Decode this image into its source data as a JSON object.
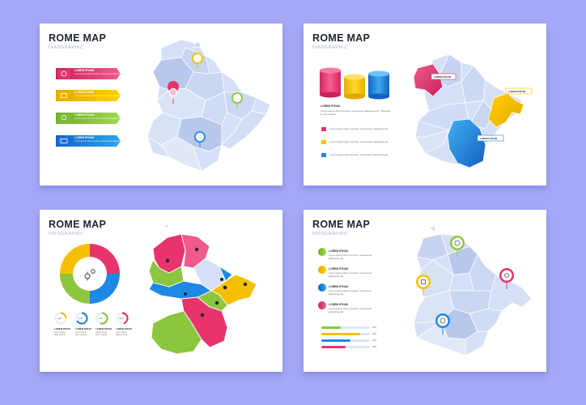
{
  "cards": [
    {
      "title": "ROME MAP",
      "subtitle": "INFOGRAPHIC",
      "items": [
        {
          "heading": "LOREM IPSUM",
          "text": "Lorem ipsum dolor sit amet, consectetur adipiscing elit",
          "color": "#e8336d",
          "icon": "building-icon"
        },
        {
          "heading": "LOREM IPSUM",
          "text": "Lorem ipsum dolor sit amet, consectetur adipiscing elit",
          "color": "#f5c000",
          "icon": "bridge-icon"
        },
        {
          "heading": "LOREM IPSUM",
          "text": "Lorem ipsum dolor sit amet, consectetur adipiscing elit",
          "color": "#8cc63e",
          "icon": "lightbulb-icon"
        },
        {
          "heading": "LOREM IPSUM",
          "text": "Lorem ipsum dolor sit amet, consectetur adipiscing elit",
          "color": "#1e88e5",
          "icon": "shop-icon"
        }
      ]
    },
    {
      "title": "ROME MAP",
      "subtitle": "INFOGRAPHIC",
      "heading": "LOREM IPSUM",
      "body": "Lorem ipsum dolor sit amet, consectetur adipiscing elit. Phasellus in erat ut diam.",
      "legend": [
        {
          "text": "Lorem ipsum dolor sit amet, consectetur adipiscing elit",
          "color": "#e8336d"
        },
        {
          "text": "Lorem ipsum dolor sit amet, consectetur adipiscing elit",
          "color": "#f5c000"
        },
        {
          "text": "Lorem ipsum dolor sit amet, consectetur adipiscing elit",
          "color": "#1e88e5"
        }
      ],
      "labels": [
        "LOREM IPSUM",
        "LOREM IPSUM",
        "LOREM IPSUM"
      ]
    },
    {
      "title": "ROME MAP",
      "subtitle": "INFOGRAPHIC",
      "stats": [
        {
          "value": "24%",
          "heading": "LOREM IPSUM",
          "text": "Lorem ipsum dolor sit amet",
          "color": "#f5c000"
        },
        {
          "value": "67%",
          "heading": "LOREM IPSUM",
          "text": "Lorem ipsum dolor sit amet",
          "color": "#1e88e5"
        },
        {
          "value": "55%",
          "heading": "LOREM IPSUM",
          "text": "Lorem ipsum dolor sit amet",
          "color": "#8cc63e"
        },
        {
          "value": "45%",
          "heading": "LOREM IPSUM",
          "text": "Lorem ipsum dolor sit amet",
          "color": "#e8336d"
        }
      ]
    },
    {
      "title": "ROME MAP",
      "subtitle": "INFOGRAPHIC",
      "items": [
        {
          "heading": "LOREM IPSUM",
          "text": "Lorem ipsum dolor sit amet, consectetur adipiscing elit",
          "color": "#8cc63e"
        },
        {
          "heading": "LOREM IPSUM",
          "text": "Lorem ipsum dolor sit amet, consectetur adipiscing elit",
          "color": "#f5c000"
        },
        {
          "heading": "LOREM IPSUM",
          "text": "Lorem ipsum dolor sit amet, consectetur adipiscing elit",
          "color": "#1e88e5"
        },
        {
          "heading": "LOREM IPSUM",
          "text": "Lorem ipsum dolor sit amet, consectetur adipiscing elit",
          "color": "#e8336d"
        }
      ],
      "bars": [
        {
          "label": "40%",
          "value": 0.4,
          "color": "#8cc63e"
        },
        {
          "label": "80%",
          "value": 0.8,
          "color": "#f5c000"
        },
        {
          "label": "60%",
          "value": 0.6,
          "color": "#1e88e5"
        },
        {
          "label": "50%",
          "value": 0.5,
          "color": "#e8336d"
        }
      ]
    }
  ],
  "colors": {
    "background": "#a5a8f6",
    "map_base": "#d5e0f6",
    "map_stroke": "#ffffff",
    "map_dark": "#b8c8ec"
  }
}
